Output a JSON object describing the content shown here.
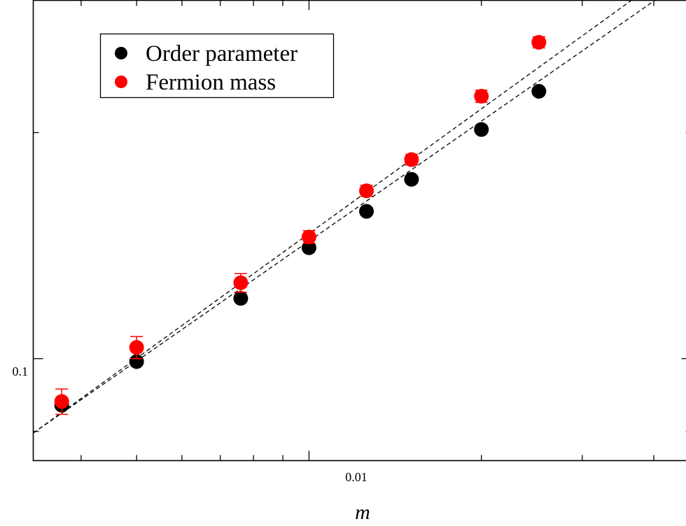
{
  "chart_data": {
    "type": "scatter",
    "xscale": "log",
    "yscale": "log",
    "xlabel": "m",
    "ylabel": "",
    "xlim": [
      0.0033,
      0.0465
    ],
    "ylim": [
      0.07315,
      0.3
    ],
    "x_tick_labels": [
      {
        "value": 0.01,
        "label": "0.01"
      }
    ],
    "y_tick_labels": [
      {
        "value": 0.1,
        "label": "0.1"
      }
    ],
    "legend_position": "top-left",
    "grid": false,
    "series": [
      {
        "name": "Order parameter",
        "color": "#000000",
        "points": [
          {
            "x": 0.0037,
            "y": 0.0867,
            "err": 0.001
          },
          {
            "x": 0.005,
            "y": 0.0991,
            "err": 0.001
          },
          {
            "x": 0.0076,
            "y": 0.1203,
            "err": 0.001
          },
          {
            "x": 0.01,
            "y": 0.1405,
            "err": 0.001
          },
          {
            "x": 0.0126,
            "y": 0.1571,
            "err": 0.001
          },
          {
            "x": 0.0151,
            "y": 0.1733,
            "err": 0.001
          },
          {
            "x": 0.02,
            "y": 0.2019,
            "err": 0.001
          },
          {
            "x": 0.0252,
            "y": 0.227,
            "err": 0.001
          }
        ]
      },
      {
        "name": "Fermion mass",
        "color": "#ff0000",
        "points": [
          {
            "x": 0.0037,
            "y": 0.0877,
            "err": 0.0034
          },
          {
            "x": 0.005,
            "y": 0.1035,
            "err": 0.0035
          },
          {
            "x": 0.0076,
            "y": 0.1262,
            "err": 0.0036
          },
          {
            "x": 0.01,
            "y": 0.1452,
            "err": 0.0028
          },
          {
            "x": 0.0126,
            "y": 0.1673,
            "err": 0.0028
          },
          {
            "x": 0.0151,
            "y": 0.1841,
            "err": 0.003
          },
          {
            "x": 0.02,
            "y": 0.2236,
            "err": 0.0042
          },
          {
            "x": 0.0252,
            "y": 0.2638,
            "err": 0.0045
          }
        ]
      }
    ],
    "fit_lines": [
      {
        "x": [
          0.0033,
          0.0465
        ],
        "y": [
          0.0796,
          0.3242
        ]
      },
      {
        "x": [
          0.0033,
          0.0465
        ],
        "y": [
          0.0796,
          0.3426
        ]
      }
    ]
  }
}
